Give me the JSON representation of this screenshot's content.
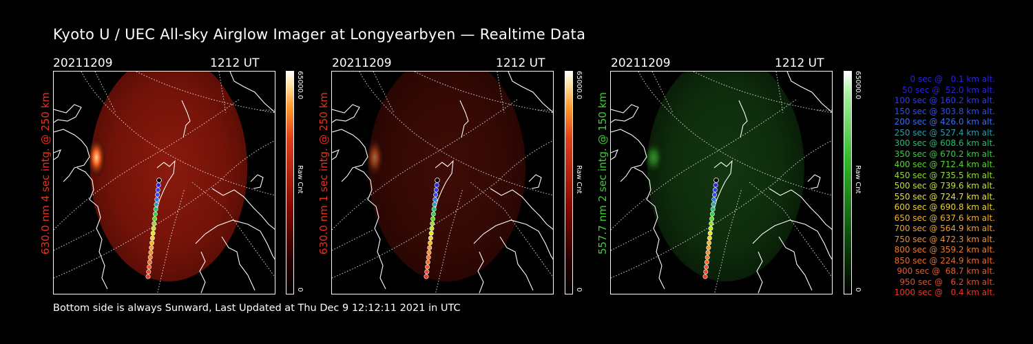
{
  "title": "Kyoto U / UEC All-sky Airglow Imager at Longyearbyen — Realtime Data",
  "footer": "Bottom side is always Sunward, Last Updated at Thu Dec  9 12:12:11 2021 in UTC",
  "panels": [
    {
      "date": "20211209",
      "time": "1212 UT",
      "label": "630.0 nm 4 sec intg. @ 250 km",
      "label_color": "#e8321e",
      "cbar_max": "65000.0",
      "cbar_min": "0",
      "cbar_unit": "Raw Cnt",
      "cmap": "red",
      "brightness": 1.0
    },
    {
      "date": "20211209",
      "time": "1212 UT",
      "label": "630.0 nm 1 sec intg. @ 250 km",
      "label_color": "#e8321e",
      "cbar_max": "65000.0",
      "cbar_min": "0",
      "cbar_unit": "Raw Cnt",
      "cmap": "red",
      "brightness": 0.45
    },
    {
      "date": "20211209",
      "time": "1212 UT",
      "label": "557.7 nm 2 sec intg. @ 150 km",
      "label_color": "#3fcf35",
      "cbar_max": "65000.0",
      "cbar_min": "0",
      "cbar_unit": "Raw Cnt",
      "cmap": "green",
      "brightness": 0.6
    }
  ],
  "legend": [
    {
      "text": "0 sec @   0.1 km alt.",
      "color": "#2a22e6"
    },
    {
      "text": "50 sec @  52.0 km alt.",
      "color": "#2a22e6"
    },
    {
      "text": "100 sec @ 160.2 km alt.",
      "color": "#2e3cf0"
    },
    {
      "text": "150 sec @ 303.8 km alt.",
      "color": "#3050f0"
    },
    {
      "text": "200 sec @ 426.0 km alt.",
      "color": "#3a6ef0"
    },
    {
      "text": "250 sec @ 527.4 km alt.",
      "color": "#2aa0a8"
    },
    {
      "text": "300 sec @ 608.6 km alt.",
      "color": "#22c070"
    },
    {
      "text": "350 sec @ 670.2 km alt.",
      "color": "#30d040"
    },
    {
      "text": "400 sec @ 712.4 km alt.",
      "color": "#5ad82a"
    },
    {
      "text": "450 sec @ 735.5 km alt.",
      "color": "#8ee02a"
    },
    {
      "text": "500 sec @ 739.6 km alt.",
      "color": "#c0e42a"
    },
    {
      "text": "550 sec @ 724.7 km alt.",
      "color": "#e6e62a"
    },
    {
      "text": "600 sec @ 690.8 km alt.",
      "color": "#f0d22a"
    },
    {
      "text": "650 sec @ 637.6 km alt.",
      "color": "#f0b62a"
    },
    {
      "text": "700 sec @ 564.9 km alt.",
      "color": "#f0a02a"
    },
    {
      "text": "750 sec @ 472.3 km alt.",
      "color": "#f08e2a"
    },
    {
      "text": "800 sec @ 359.2 km alt.",
      "color": "#f07c2a"
    },
    {
      "text": "850 sec @ 224.9 km alt.",
      "color": "#ee6a2a"
    },
    {
      "text": "900 sec @  68.7 km alt.",
      "color": "#ec5a2a"
    },
    {
      "text": "950 sec @   6.2 km alt.",
      "color": "#ea4a2a"
    },
    {
      "text": "1000 sec @   0.4 km alt.",
      "color": "#e83a28"
    }
  ]
}
